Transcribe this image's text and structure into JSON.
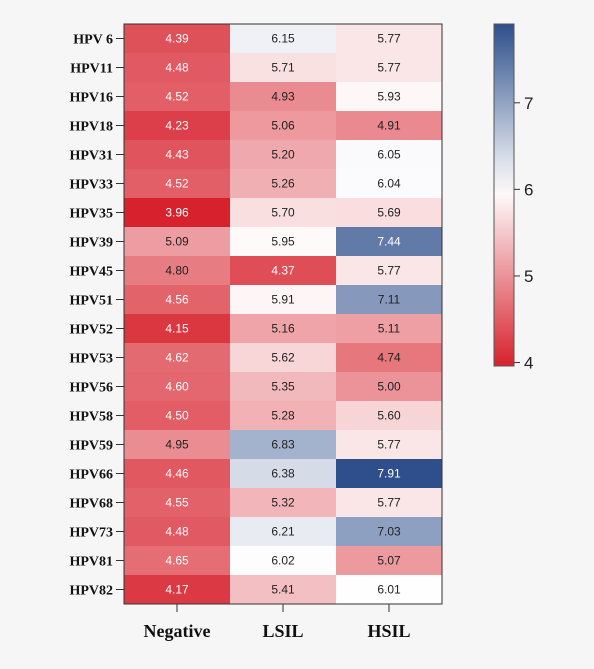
{
  "chart_data": {
    "type": "heatmap",
    "rows": [
      "HPV 6",
      "HPV11",
      "HPV16",
      "HPV18",
      "HPV31",
      "HPV33",
      "HPV35",
      "HPV39",
      "HPV45",
      "HPV51",
      "HPV52",
      "HPV53",
      "HPV56",
      "HPV58",
      "HPV59",
      "HPV66",
      "HPV68",
      "HPV73",
      "HPV81",
      "HPV82"
    ],
    "columns": [
      "Negative",
      "LSIL",
      "HSIL"
    ],
    "values": [
      [
        4.39,
        6.15,
        5.77
      ],
      [
        4.48,
        5.71,
        5.77
      ],
      [
        4.52,
        4.93,
        5.93
      ],
      [
        4.23,
        5.06,
        4.91
      ],
      [
        4.43,
        5.2,
        6.05
      ],
      [
        4.52,
        5.26,
        6.04
      ],
      [
        3.96,
        5.7,
        5.69
      ],
      [
        5.09,
        5.95,
        7.44
      ],
      [
        4.8,
        4.37,
        5.77
      ],
      [
        4.56,
        5.91,
        7.11
      ],
      [
        4.15,
        5.16,
        5.11
      ],
      [
        4.62,
        5.62,
        4.74
      ],
      [
        4.6,
        5.35,
        5.0
      ],
      [
        4.5,
        5.28,
        5.6
      ],
      [
        4.95,
        6.83,
        5.77
      ],
      [
        4.46,
        6.38,
        7.91
      ],
      [
        4.55,
        5.32,
        5.77
      ],
      [
        4.48,
        6.21,
        7.03
      ],
      [
        4.65,
        6.02,
        5.07
      ],
      [
        4.17,
        5.41,
        6.01
      ]
    ],
    "value_labels": [
      [
        "4.39",
        "6.15",
        "5.77"
      ],
      [
        "4.48",
        "5.71",
        "5.77"
      ],
      [
        "4.52",
        "4.93",
        "5.93"
      ],
      [
        "4.23",
        "5.06",
        "4.91"
      ],
      [
        "4.43",
        "5.20",
        "6.05"
      ],
      [
        "4.52",
        "5.26",
        "6.04"
      ],
      [
        "3.96",
        "5.70",
        "5.69"
      ],
      [
        "5.09",
        "5.95",
        "7.44"
      ],
      [
        "4.80",
        "4.37",
        "5.77"
      ],
      [
        "4.56",
        "5.91",
        "7.11"
      ],
      [
        "4.15",
        "5.16",
        "5.11"
      ],
      [
        "4.62",
        "5.62",
        "4.74"
      ],
      [
        "4.60",
        "5.35",
        "5.00"
      ],
      [
        "4.50",
        "5.28",
        "5.60"
      ],
      [
        "4.95",
        "6.83",
        "5.77"
      ],
      [
        "4.46",
        "6.38",
        "7.91"
      ],
      [
        "4.55",
        "5.32",
        "5.77"
      ],
      [
        "4.48",
        "6.21",
        "7.03"
      ],
      [
        "4.65",
        "6.02",
        "5.07"
      ],
      [
        "4.17",
        "5.41",
        "6.01"
      ]
    ],
    "colorbar": {
      "range": [
        3.96,
        7.91
      ],
      "ticks": [
        4,
        5,
        6,
        7
      ],
      "tick_labels": [
        "4",
        "5",
        "6",
        "7"
      ],
      "position": "right"
    },
    "colors": {
      "low": "#d7222d",
      "mid": "#ffffff",
      "high": "#2e4f8c"
    },
    "title": "",
    "xlabel": "",
    "ylabel": ""
  }
}
